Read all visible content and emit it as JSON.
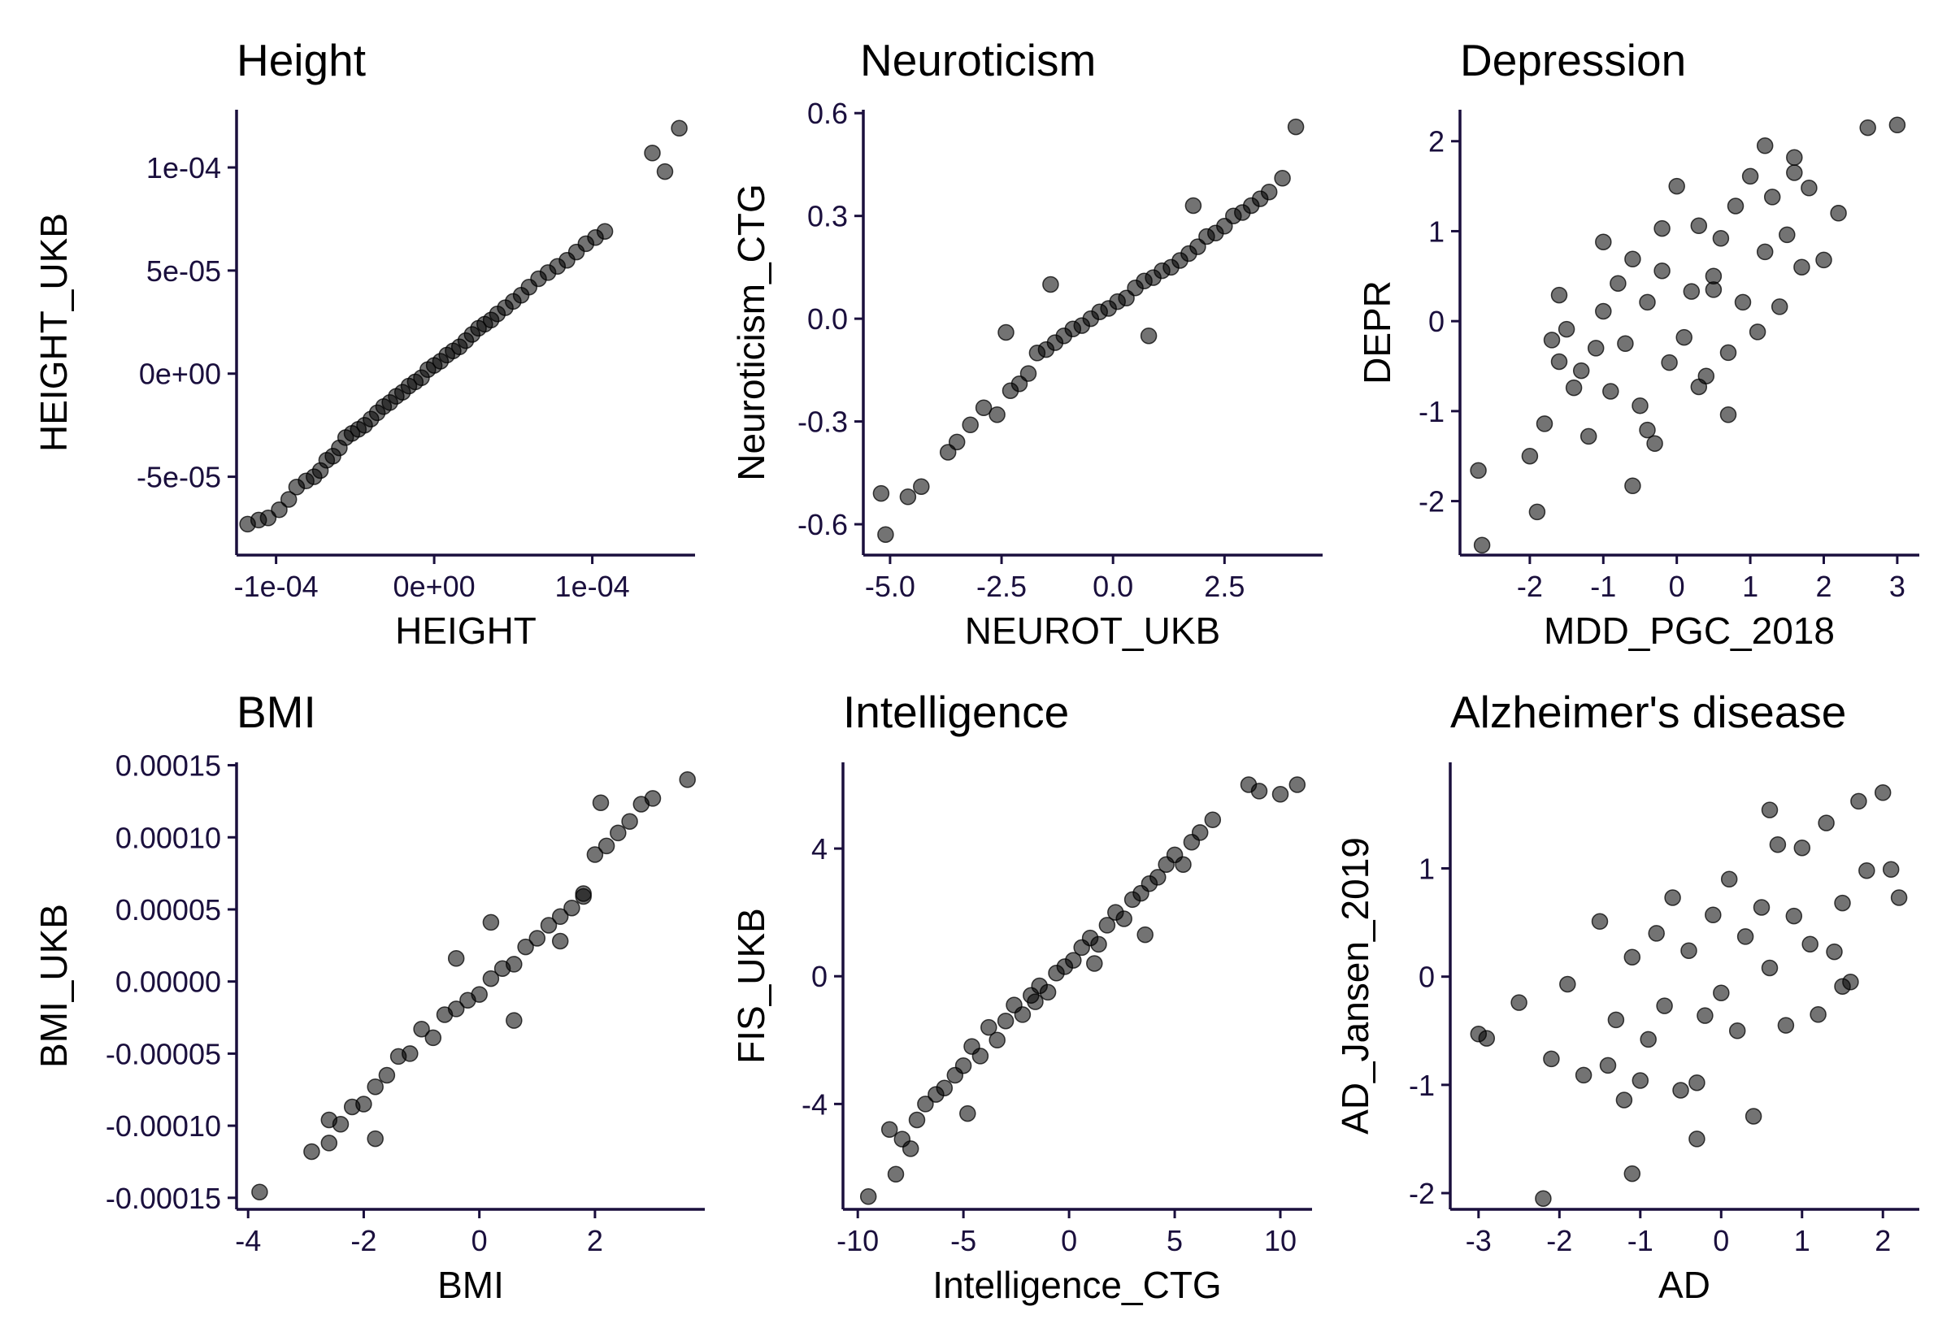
{
  "style": {
    "point_color": "#000000",
    "axis_color": "#1a0f3d",
    "tick_label_color": "#1a0f3d"
  },
  "chart_data": [
    {
      "type": "scatter",
      "title": "Height",
      "xlabel": "HEIGHT",
      "ylabel": "HEIGHT_UKB",
      "xlim": [
        -0.000125,
        0.000165
      ],
      "ylim": [
        -8.8e-05,
        0.000128
      ],
      "xticks": [
        -0.0001,
        0,
        0.0001
      ],
      "xtick_labels": [
        "-1e-04",
        "0e+00",
        "1e-04"
      ],
      "yticks": [
        -5e-05,
        0,
        5e-05,
        0.0001
      ],
      "ytick_labels": [
        "-5e-05",
        "0e+00",
        "5e-05",
        "1e-04"
      ],
      "x": [
        -0.000118,
        -0.000111,
        -0.000105,
        -9.8e-05,
        -9.2e-05,
        -8.7e-05,
        -8.1e-05,
        -7.6e-05,
        -7.2e-05,
        -6.8e-05,
        -6.4e-05,
        -6e-05,
        -5.6e-05,
        -5.2e-05,
        -4.8e-05,
        -4.4e-05,
        -4e-05,
        -3.6e-05,
        -3.2e-05,
        -2.8e-05,
        -2.4e-05,
        -2e-05,
        -1.6e-05,
        -1.2e-05,
        -8e-06,
        -4e-06,
        0,
        4e-06,
        8e-06,
        1.2e-05,
        1.6e-05,
        2e-05,
        2.4e-05,
        2.8e-05,
        3.2e-05,
        3.6e-05,
        4e-05,
        4.5e-05,
        5e-05,
        5.5e-05,
        6e-05,
        6.6e-05,
        7.2e-05,
        7.8e-05,
        8.4e-05,
        9e-05,
        9.6e-05,
        0.000102,
        0.000108,
        0.000138,
        0.000146,
        0.000155
      ],
      "y": [
        -7.3e-05,
        -7.1e-05,
        -7e-05,
        -6.6e-05,
        -6.1e-05,
        -5.5e-05,
        -5.2e-05,
        -5e-05,
        -4.7e-05,
        -4.2e-05,
        -4e-05,
        -3.6e-05,
        -3.1e-05,
        -2.9e-05,
        -2.7e-05,
        -2.5e-05,
        -2.2e-05,
        -1.9e-05,
        -1.6e-05,
        -1.4e-05,
        -1.1e-05,
        -9e-06,
        -6e-06,
        -4e-06,
        -2e-06,
        2e-06,
        4e-06,
        6e-06,
        9e-06,
        1.1e-05,
        1.3e-05,
        1.6e-05,
        1.9e-05,
        2.2e-05,
        2.4e-05,
        2.6e-05,
        2.9e-05,
        3.2e-05,
        3.5e-05,
        3.8e-05,
        4.2e-05,
        4.6e-05,
        4.9e-05,
        5.2e-05,
        5.5e-05,
        5.9e-05,
        6.3e-05,
        6.6e-05,
        6.9e-05,
        0.000107,
        9.8e-05,
        0.000119
      ]
    },
    {
      "type": "scatter",
      "title": "Neuroticism",
      "xlabel": "NEUROT_UKB",
      "ylabel": "Neuroticism_CTG",
      "xlim": [
        -5.6,
        4.7
      ],
      "ylim": [
        -0.69,
        0.61
      ],
      "xticks": [
        -5,
        -2.5,
        0,
        2.5
      ],
      "xtick_labels": [
        "-5.0",
        "-2.5",
        "0.0",
        "2.5"
      ],
      "yticks": [
        -0.6,
        -0.3,
        0,
        0.3,
        0.6
      ],
      "ytick_labels": [
        "-0.6",
        "-0.3",
        "0.0",
        "0.3",
        "0.6"
      ],
      "x": [
        -5.2,
        -5.1,
        -4.6,
        -4.3,
        -3.7,
        -3.5,
        -3.2,
        -2.9,
        -2.6,
        -2.3,
        -2.1,
        -1.9,
        -1.7,
        -1.5,
        -1.3,
        -1.1,
        -0.9,
        -0.7,
        -0.5,
        -0.3,
        -0.1,
        0.1,
        0.3,
        0.5,
        0.7,
        0.9,
        1.1,
        1.3,
        1.5,
        1.7,
        1.9,
        2.1,
        2.3,
        2.5,
        2.7,
        2.9,
        3.1,
        3.3,
        3.5,
        3.8,
        4.1,
        -2.4,
        -1.4,
        0.8,
        1.8
      ],
      "y": [
        -0.51,
        -0.63,
        -0.52,
        -0.49,
        -0.39,
        -0.36,
        -0.31,
        -0.26,
        -0.28,
        -0.21,
        -0.19,
        -0.16,
        -0.1,
        -0.09,
        -0.07,
        -0.05,
        -0.03,
        -0.02,
        0.0,
        0.02,
        0.03,
        0.05,
        0.06,
        0.09,
        0.11,
        0.12,
        0.14,
        0.15,
        0.17,
        0.19,
        0.21,
        0.24,
        0.25,
        0.27,
        0.3,
        0.31,
        0.33,
        0.35,
        0.37,
        0.41,
        0.56,
        -0.04,
        0.1,
        -0.05,
        0.33
      ]
    },
    {
      "type": "scatter",
      "title": "Depression",
      "xlabel": "MDD_PGC_2018",
      "ylabel": "DEPR",
      "xlim": [
        -2.95,
        3.3
      ],
      "ylim": [
        -2.6,
        2.35
      ],
      "xticks": [
        -2,
        -1,
        0,
        1,
        2,
        3
      ],
      "xtick_labels": [
        "-2",
        "-1",
        "0",
        "1",
        "2",
        "3"
      ],
      "yticks": [
        -2,
        -1,
        0,
        1,
        2
      ],
      "ytick_labels": [
        "-2",
        "-1",
        "0",
        "1",
        "2"
      ],
      "x": [
        -2.7,
        -2.65,
        -2.0,
        -1.9,
        -1.8,
        -1.7,
        -1.6,
        -1.5,
        -1.4,
        -1.3,
        -1.2,
        -1.1,
        -1.0,
        -0.9,
        -0.8,
        -0.7,
        -0.6,
        -0.5,
        -0.4,
        -0.3,
        -0.2,
        -0.1,
        0.0,
        0.1,
        0.2,
        0.3,
        0.4,
        0.5,
        0.6,
        0.7,
        0.8,
        0.9,
        1.0,
        1.1,
        1.2,
        1.3,
        1.4,
        1.5,
        1.6,
        1.7,
        1.8,
        2.0,
        2.2,
        2.6,
        3.0,
        -1.6,
        -0.6,
        0.3,
        1.2,
        -0.2,
        0.7,
        -1.0,
        0.5,
        -0.4,
        1.6
      ],
      "y": [
        -1.66,
        -2.49,
        -1.5,
        -2.12,
        -1.14,
        -0.21,
        -0.45,
        -0.09,
        -0.74,
        -0.55,
        -1.28,
        -0.3,
        0.11,
        -0.78,
        0.42,
        -0.25,
        0.69,
        -0.94,
        0.21,
        -1.36,
        0.56,
        -0.46,
        1.5,
        -0.18,
        0.33,
        1.06,
        -0.61,
        0.5,
        0.92,
        -0.35,
        1.28,
        0.21,
        1.61,
        -0.12,
        0.77,
        1.38,
        0.16,
        0.96,
        1.65,
        0.6,
        1.48,
        0.68,
        1.2,
        2.15,
        2.18,
        0.29,
        -1.83,
        -0.73,
        1.95,
        1.03,
        -1.04,
        0.88,
        0.35,
        -1.21,
        1.82
      ]
    },
    {
      "type": "scatter",
      "title": "BMI",
      "xlabel": "BMI",
      "ylabel": "BMI_UKB",
      "xlim": [
        -4.2,
        3.9
      ],
      "ylim": [
        -0.000158,
        0.000152
      ],
      "xticks": [
        -4,
        -2,
        0,
        2
      ],
      "xtick_labels": [
        "-4",
        "-2",
        "0",
        "2"
      ],
      "yticks": [
        -0.00015,
        -0.0001,
        -5e-05,
        0,
        5e-05,
        0.0001,
        0.00015
      ],
      "ytick_labels": [
        "-0.00015",
        "-0.00010",
        "-0.00005",
        "0.00000",
        "0.00005",
        "0.00010",
        "0.00015"
      ],
      "x": [
        -3.8,
        -2.9,
        -2.6,
        -2.4,
        -2.2,
        -2.0,
        -1.8,
        -1.6,
        -1.4,
        -1.2,
        -1.0,
        -0.8,
        -0.6,
        -0.4,
        -0.2,
        0.0,
        0.2,
        0.4,
        0.6,
        0.8,
        1.0,
        1.2,
        1.4,
        1.6,
        1.8,
        2.0,
        2.2,
        2.4,
        2.6,
        2.8,
        3.0,
        3.6,
        -1.8,
        -0.4,
        0.6,
        1.4,
        -2.6,
        0.2,
        1.8,
        2.1
      ],
      "y": [
        -0.000146,
        -0.000118,
        -0.000112,
        -9.9e-05,
        -8.7e-05,
        -8.5e-05,
        -7.3e-05,
        -6.5e-05,
        -5.2e-05,
        -5e-05,
        -3.3e-05,
        -3.9e-05,
        -2.3e-05,
        -1.9e-05,
        -1.3e-05,
        -9e-06,
        2e-06,
        9e-06,
        1.2e-05,
        2.4e-05,
        3e-05,
        3.9e-05,
        4.5e-05,
        5.1e-05,
        5.9e-05,
        8.8e-05,
        9.4e-05,
        0.000103,
        0.000111,
        0.000123,
        0.000127,
        0.00014,
        -0.000109,
        1.6e-05,
        -2.7e-05,
        2.8e-05,
        -9.6e-05,
        4.1e-05,
        6.1e-05,
        0.000124
      ]
    },
    {
      "type": "scatter",
      "title": "Intelligence",
      "xlabel": "Intelligence_CTG",
      "ylabel": "FIS_UKB",
      "xlim": [
        -10.7,
        11.5
      ],
      "ylim": [
        -7.3,
        6.7
      ],
      "xticks": [
        -10,
        -5,
        0,
        5,
        10
      ],
      "xtick_labels": [
        "-10",
        "-5",
        "0",
        "5",
        "10"
      ],
      "yticks": [
        -4,
        0,
        4
      ],
      "ytick_labels": [
        "-4",
        "0",
        "4"
      ],
      "x": [
        -9.5,
        -8.5,
        -8.2,
        -7.9,
        -7.5,
        -7.2,
        -6.8,
        -6.3,
        -5.9,
        -5.4,
        -5.0,
        -4.6,
        -4.2,
        -3.8,
        -3.4,
        -3.0,
        -2.6,
        -2.2,
        -1.8,
        -1.4,
        -1.0,
        -0.6,
        -0.2,
        0.2,
        0.6,
        1.0,
        1.4,
        1.8,
        2.2,
        2.6,
        3.0,
        3.4,
        3.8,
        4.2,
        4.6,
        5.0,
        5.4,
        5.8,
        6.2,
        6.8,
        8.5,
        9.0,
        10.0,
        10.8,
        -4.8,
        -1.6,
        1.2,
        3.6
      ],
      "y": [
        -6.9,
        -4.8,
        -6.2,
        -5.1,
        -5.4,
        -4.5,
        -4.0,
        -3.7,
        -3.5,
        -3.1,
        -2.8,
        -2.2,
        -2.5,
        -1.6,
        -2.0,
        -1.4,
        -0.9,
        -1.2,
        -0.6,
        -0.3,
        -0.5,
        0.1,
        0.3,
        0.5,
        0.9,
        1.2,
        1.0,
        1.6,
        2.0,
        1.8,
        2.4,
        2.6,
        2.9,
        3.1,
        3.5,
        3.8,
        3.5,
        4.2,
        4.5,
        4.9,
        6.0,
        5.8,
        5.7,
        6.0,
        -4.3,
        -0.8,
        0.4,
        1.3
      ]
    },
    {
      "type": "scatter",
      "title": "Alzheimer's disease",
      "xlabel": "AD",
      "ylabel": "AD_Jansen_2019",
      "xlim": [
        -3.35,
        2.45
      ],
      "ylim": [
        -2.15,
        1.98
      ],
      "xticks": [
        -3,
        -2,
        -1,
        0,
        1,
        2
      ],
      "xtick_labels": [
        "-3",
        "-2",
        "-1",
        "0",
        "1",
        "2"
      ],
      "yticks": [
        -2,
        -1,
        0,
        1
      ],
      "ytick_labels": [
        "-2",
        "-1",
        "0",
        "1"
      ],
      "x": [
        -3.0,
        -2.9,
        -2.5,
        -2.2,
        -2.1,
        -1.9,
        -1.7,
        -1.5,
        -1.4,
        -1.3,
        -1.2,
        -1.1,
        -1.0,
        -0.9,
        -0.8,
        -0.7,
        -0.6,
        -0.5,
        -0.4,
        -0.3,
        -0.2,
        -0.1,
        0.0,
        0.1,
        0.2,
        0.3,
        0.4,
        0.5,
        0.6,
        0.7,
        0.8,
        0.9,
        1.0,
        1.1,
        1.2,
        1.3,
        1.4,
        1.5,
        1.6,
        1.7,
        1.8,
        2.0,
        2.1,
        2.2,
        -1.1,
        -0.3,
        0.6,
        1.5
      ],
      "y": [
        -0.53,
        -0.57,
        -0.24,
        -2.05,
        -0.76,
        -0.07,
        -0.91,
        0.51,
        -0.82,
        -0.4,
        -1.14,
        0.18,
        -0.96,
        -0.58,
        0.4,
        -0.27,
        0.73,
        -1.05,
        0.24,
        -1.5,
        -0.36,
        0.57,
        -0.15,
        0.9,
        -0.5,
        0.37,
        -1.29,
        0.64,
        0.08,
        1.22,
        -0.45,
        0.56,
        1.19,
        0.3,
        -0.35,
        1.42,
        0.23,
        0.68,
        -0.05,
        1.62,
        0.98,
        1.7,
        0.99,
        0.73,
        -1.82,
        -0.98,
        1.54,
        -0.09
      ]
    }
  ]
}
